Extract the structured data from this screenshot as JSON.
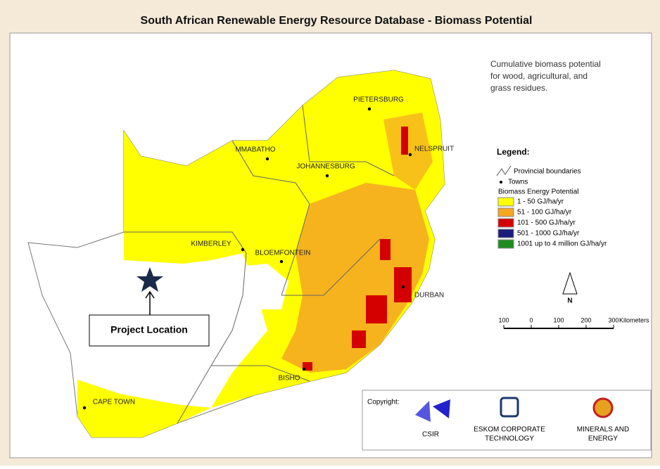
{
  "title": "South African Renewable Energy Resource Database - Biomass Potential",
  "description": [
    "Cumulative biomass potential",
    "for wood, agricultural, and",
    "grass residues."
  ],
  "towns": [
    "PIETERSBURG",
    "MMABATHO",
    "JOHANNESBURG",
    "NELSPRUIT",
    "KIMBERLEY",
    "BLOEMFONTEIN",
    "DURBAN",
    "BISHO",
    "CAPE TOWN"
  ],
  "legend": {
    "title": "Legend:",
    "boundaries": "Provincial boundaries",
    "towns": "Towns",
    "heading": "Biomass Energy Potential",
    "classes": [
      {
        "label": "1 - 50 GJ/ha/yr",
        "color": "#ffff00"
      },
      {
        "label": "51 - 100 GJ/ha/yr",
        "color": "#f5a623"
      },
      {
        "label": "101 - 500 GJ/ha/yr",
        "color": "#d40000"
      },
      {
        "label": "501 - 1000 GJ/ha/yr",
        "color": "#1c1c7c"
      },
      {
        "label": "1001 up to 4 million GJ/ha/yr",
        "color": "#1e8c1e"
      }
    ]
  },
  "north": "N",
  "scale": {
    "ticks": [
      {
        "value": -100,
        "label": "100"
      },
      0,
      100,
      200,
      300
    ],
    "unit": "Kilometers"
  },
  "annotation": "Project Location",
  "copyright": {
    "label": "Copyright:",
    "logos": [
      [
        "CSIR"
      ],
      [
        "ESKOM CORPORATE",
        "TECHNOLOGY"
      ],
      [
        "MINERALS AND",
        "ENERGY"
      ]
    ]
  }
}
